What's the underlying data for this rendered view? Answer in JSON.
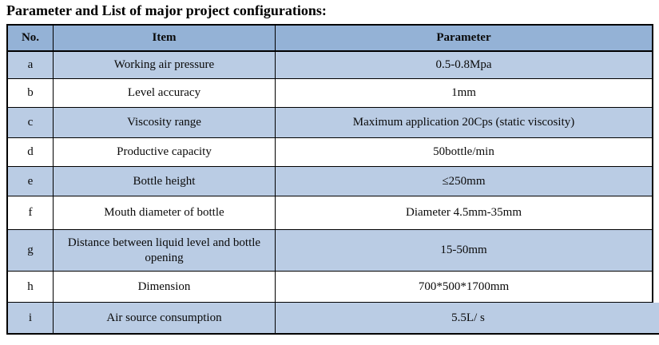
{
  "page": {
    "title": "Parameter and List of major project configurations:"
  },
  "table": {
    "headers": {
      "no": "No.",
      "item": "Item",
      "parameter": "Parameter"
    },
    "rows": [
      {
        "no": "a",
        "item": "Working air pressure",
        "parameter": "0.5-0.8Mpa"
      },
      {
        "no": "b",
        "item": "Level accuracy",
        "parameter": "1mm"
      },
      {
        "no": "c",
        "item": "Viscosity range",
        "parameter": "Maximum application 20Cps (static viscosity)"
      },
      {
        "no": "d",
        "item": "Productive capacity",
        "parameter": "50bottle/min"
      },
      {
        "no": "e",
        "item": "Bottle height",
        "parameter": "≤250mm"
      },
      {
        "no": "f",
        "item": "Mouth diameter of bottle",
        "parameter": "Diameter 4.5mm-35mm"
      },
      {
        "no": "g",
        "item": "Distance between liquid level and bottle opening",
        "parameter": "15-50mm"
      },
      {
        "no": "h",
        "item": "Dimension",
        "parameter": "700*500*1700mm"
      },
      {
        "no": "i",
        "item": "Air source consumption",
        "parameter": "5.5L/ s"
      }
    ],
    "colors": {
      "header_bg": "#94B2D6",
      "shaded_row_bg": "#BACCE4",
      "white_row_bg": "#FFFFFF",
      "border": "#000000"
    }
  }
}
